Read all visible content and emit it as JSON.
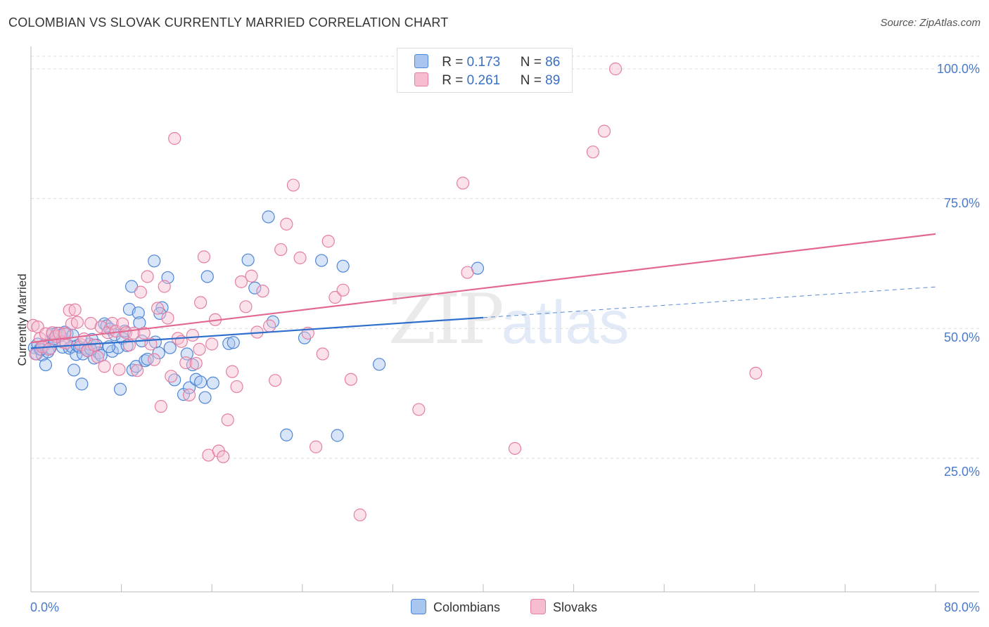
{
  "header": {
    "title": "COLOMBIAN VS SLOVAK CURRENTLY MARRIED CORRELATION CHART",
    "source": "Source: ZipAtlas.com"
  },
  "watermark": {
    "zip": "ZIP",
    "atlas": "atlas"
  },
  "legend_top": {
    "rows": [
      {
        "r_label": "R =",
        "r_value": "0.173",
        "n_label": "N =",
        "n_value": "86"
      },
      {
        "r_label": "R =",
        "r_value": "0.261",
        "n_label": "N =",
        "n_value": "89"
      }
    ]
  },
  "legend_bottom": {
    "items": [
      "Colombians",
      "Slovaks"
    ]
  },
  "colors": {
    "colombians_fill": "#a9c6f0",
    "colombians_stroke": "#4f86d6",
    "colombians_line": "#2f6fcc",
    "slovaks_fill": "#f6bdd0",
    "slovaks_stroke": "#e57fa2",
    "slovaks_line": "#e26891",
    "tick_text": "#4a7ac9",
    "grid": "#dddddd"
  },
  "chart_data": {
    "type": "scatter",
    "title": "COLOMBIAN VS SLOVAK CURRENTLY MARRIED CORRELATION CHART",
    "xlabel": "",
    "ylabel": "Currently Married",
    "xlim": [
      0,
      80
    ],
    "ylim": [
      0,
      102
    ],
    "x_tick_labels": [
      "0.0%",
      "80.0%"
    ],
    "y_ticks": [
      25,
      50,
      75,
      100
    ],
    "y_tick_labels": [
      "25.0%",
      "50.0%",
      "75.0%",
      "100.0%"
    ],
    "grid": true,
    "legend_position": "top-center",
    "series": [
      {
        "name": "Colombians",
        "r": 0.173,
        "n": 86,
        "trend": {
          "x0": 0,
          "y0": 46.2,
          "x1": 40,
          "y1": 52.1,
          "dashed_to_x": 80,
          "dashed_to_y": 58.0
        },
        "points": [
          [
            0.3,
            46.3
          ],
          [
            0.5,
            45.1
          ],
          [
            0.6,
            47.0
          ],
          [
            0.8,
            46.0
          ],
          [
            1.0,
            44.9
          ],
          [
            1.2,
            46.8
          ],
          [
            1.3,
            43.0
          ],
          [
            1.5,
            45.5
          ],
          [
            1.7,
            46.2
          ],
          [
            1.9,
            48.9
          ],
          [
            2.1,
            47.5
          ],
          [
            2.3,
            49.1
          ],
          [
            2.6,
            48.7
          ],
          [
            2.8,
            46.4
          ],
          [
            3.0,
            49.3
          ],
          [
            3.2,
            49.0
          ],
          [
            3.4,
            46.2
          ],
          [
            3.6,
            46.5
          ],
          [
            3.8,
            42.0
          ],
          [
            4.0,
            45.0
          ],
          [
            4.1,
            46.7
          ],
          [
            4.3,
            46.4
          ],
          [
            4.5,
            39.3
          ],
          [
            4.6,
            45.1
          ],
          [
            4.8,
            46.2
          ],
          [
            5.0,
            45.8
          ],
          [
            5.2,
            47.0
          ],
          [
            5.4,
            47.9
          ],
          [
            5.6,
            44.3
          ],
          [
            5.8,
            46.8
          ],
          [
            6.0,
            45.3
          ],
          [
            6.2,
            44.8
          ],
          [
            6.5,
            50.9
          ],
          [
            6.7,
            50.5
          ],
          [
            7.0,
            49.9
          ],
          [
            7.2,
            45.6
          ],
          [
            7.4,
            48.8
          ],
          [
            7.7,
            46.3
          ],
          [
            7.9,
            38.3
          ],
          [
            8.1,
            48.1
          ],
          [
            8.3,
            49.5
          ],
          [
            8.5,
            46.7
          ],
          [
            8.7,
            53.7
          ],
          [
            9.0,
            42.0
          ],
          [
            9.3,
            42.7
          ],
          [
            9.5,
            53.0
          ],
          [
            9.6,
            51.1
          ],
          [
            9.8,
            47.6
          ],
          [
            10.1,
            43.8
          ],
          [
            10.3,
            44.1
          ],
          [
            11.0,
            47.4
          ],
          [
            11.3,
            45.3
          ],
          [
            11.6,
            54.0
          ],
          [
            12.3,
            46.3
          ],
          [
            12.7,
            40.1
          ],
          [
            13.5,
            37.3
          ],
          [
            14.0,
            38.6
          ],
          [
            14.3,
            43.0
          ],
          [
            14.6,
            40.2
          ],
          [
            15.0,
            39.7
          ],
          [
            15.4,
            36.7
          ],
          [
            16.1,
            39.5
          ],
          [
            17.5,
            47.1
          ],
          [
            19.2,
            63.2
          ],
          [
            19.8,
            57.8
          ],
          [
            21.0,
            71.5
          ],
          [
            21.4,
            51.3
          ],
          [
            22.6,
            29.5
          ],
          [
            24.2,
            48.2
          ],
          [
            25.7,
            63.1
          ],
          [
            27.1,
            29.4
          ],
          [
            27.6,
            62.0
          ],
          [
            30.8,
            43.1
          ],
          [
            39.5,
            61.6
          ],
          [
            0.9,
            46.0
          ],
          [
            2.0,
            48.0
          ],
          [
            3.7,
            48.7
          ],
          [
            5.3,
            46.0
          ],
          [
            6.9,
            46.5
          ],
          [
            10.9,
            63.0
          ],
          [
            12.1,
            59.8
          ],
          [
            13.8,
            45.1
          ],
          [
            15.6,
            60.0
          ],
          [
            17.9,
            47.3
          ],
          [
            11.4,
            52.9
          ],
          [
            8.9,
            58.1
          ]
        ]
      },
      {
        "name": "Slovaks",
        "r": 0.261,
        "n": 89,
        "trend": {
          "x0": 0,
          "y0": 47.3,
          "x1": 80,
          "y1": 68.2
        },
        "points": [
          [
            0.2,
            50.6
          ],
          [
            0.4,
            45.1
          ],
          [
            0.6,
            50.3
          ],
          [
            0.8,
            48.1
          ],
          [
            1.0,
            46.5
          ],
          [
            1.3,
            49.0
          ],
          [
            1.6,
            46.0
          ],
          [
            1.9,
            49.2
          ],
          [
            2.2,
            48.5
          ],
          [
            2.5,
            49.1
          ],
          [
            2.8,
            47.4
          ],
          [
            3.1,
            47.2
          ],
          [
            3.4,
            53.5
          ],
          [
            3.6,
            50.9
          ],
          [
            3.9,
            53.6
          ],
          [
            4.1,
            51.2
          ],
          [
            4.4,
            46.9
          ],
          [
            4.7,
            48.0
          ],
          [
            5.0,
            45.7
          ],
          [
            5.3,
            51.0
          ],
          [
            5.6,
            46.8
          ],
          [
            5.9,
            44.5
          ],
          [
            6.2,
            50.3
          ],
          [
            6.5,
            42.7
          ],
          [
            6.8,
            49.2
          ],
          [
            7.2,
            51.0
          ],
          [
            7.5,
            49.5
          ],
          [
            7.8,
            42.1
          ],
          [
            8.1,
            50.9
          ],
          [
            8.4,
            49.2
          ],
          [
            8.7,
            46.8
          ],
          [
            9.1,
            49.1
          ],
          [
            9.4,
            41.9
          ],
          [
            9.7,
            57.0
          ],
          [
            10.0,
            49.1
          ],
          [
            10.3,
            60.0
          ],
          [
            10.6,
            47.0
          ],
          [
            10.9,
            44.0
          ],
          [
            11.2,
            53.9
          ],
          [
            11.5,
            35.0
          ],
          [
            11.8,
            58.1
          ],
          [
            12.1,
            52.0
          ],
          [
            12.4,
            40.8
          ],
          [
            12.7,
            86.6
          ],
          [
            13.0,
            48.1
          ],
          [
            13.3,
            47.5
          ],
          [
            13.7,
            43.4
          ],
          [
            14.0,
            37.2
          ],
          [
            14.3,
            48.7
          ],
          [
            14.6,
            43.3
          ],
          [
            15.0,
            55.0
          ],
          [
            15.3,
            63.8
          ],
          [
            15.7,
            25.6
          ],
          [
            16.0,
            47.0
          ],
          [
            16.3,
            51.7
          ],
          [
            16.6,
            26.4
          ],
          [
            17.0,
            25.3
          ],
          [
            17.4,
            32.4
          ],
          [
            17.8,
            41.7
          ],
          [
            18.2,
            38.8
          ],
          [
            18.6,
            59.0
          ],
          [
            19.0,
            54.2
          ],
          [
            19.5,
            60.1
          ],
          [
            20.0,
            49.3
          ],
          [
            20.5,
            57.2
          ],
          [
            21.1,
            50.5
          ],
          [
            21.6,
            40.0
          ],
          [
            22.1,
            65.2
          ],
          [
            22.6,
            70.1
          ],
          [
            23.2,
            77.6
          ],
          [
            23.8,
            63.6
          ],
          [
            24.5,
            49.1
          ],
          [
            25.2,
            27.2
          ],
          [
            25.8,
            45.1
          ],
          [
            26.3,
            66.8
          ],
          [
            26.9,
            56.0
          ],
          [
            27.6,
            57.4
          ],
          [
            28.3,
            40.2
          ],
          [
            29.1,
            14.1
          ],
          [
            34.3,
            34.4
          ],
          [
            38.2,
            78.0
          ],
          [
            38.6,
            60.8
          ],
          [
            42.8,
            26.9
          ],
          [
            49.7,
            84.0
          ],
          [
            50.7,
            88.0
          ],
          [
            51.7,
            100.0
          ],
          [
            64.1,
            41.4
          ],
          [
            3.0,
            49.0
          ],
          [
            14.9,
            46.0
          ]
        ]
      }
    ]
  }
}
